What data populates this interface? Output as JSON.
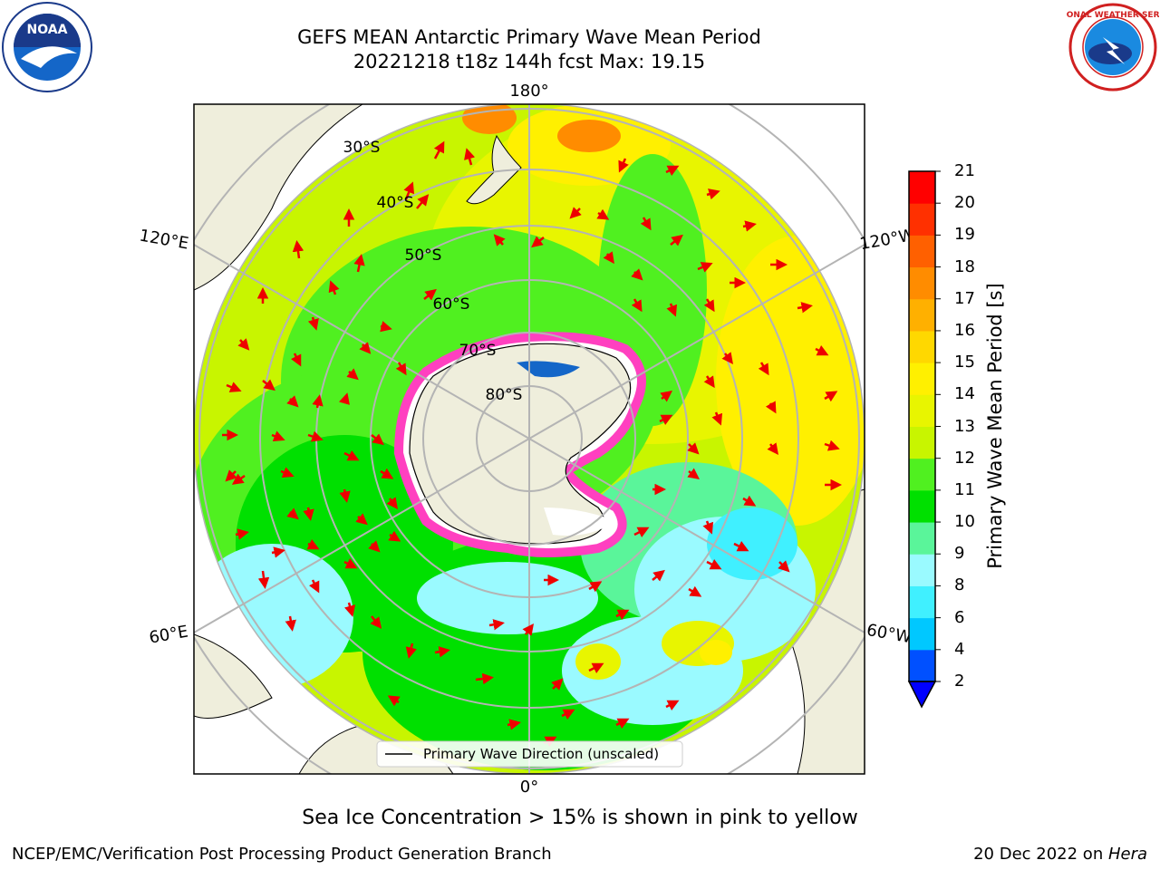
{
  "header": {
    "title_line1": "GEFS MEAN Antarctic Primary Wave Mean Period",
    "title_line2": "20221218 t18z 144h fcst   Max: 19.15"
  },
  "logos": {
    "left": "noaa-logo",
    "left_text": "NOAA",
    "right": "nws-logo",
    "right_text": "NATIONAL WEATHER SERVICE"
  },
  "map": {
    "projection": "south-polar-stereographic",
    "lon_labels": {
      "top": "180°",
      "bottom": "0°",
      "upper_left": "120°E",
      "upper_right": "120°W",
      "lower_left": "60°E",
      "lower_right": "60°W"
    },
    "lat_labels": [
      "30°S",
      "40°S",
      "50°S",
      "60°S",
      "70°S",
      "80°S"
    ],
    "legend_label": "Primary Wave Direction (unscaled)"
  },
  "colorbar": {
    "title": "Primary Wave Mean Period [s]",
    "ticks": [
      "2",
      "4",
      "6",
      "8",
      "9",
      "10",
      "11",
      "12",
      "13",
      "14",
      "15",
      "16",
      "17",
      "18",
      "19",
      "20",
      "21"
    ],
    "colors": [
      "#0050ff",
      "#00c8ff",
      "#40f0ff",
      "#9afaff",
      "#5af59a",
      "#00e000",
      "#50f020",
      "#c8f500",
      "#e8f500",
      "#fff000",
      "#ffd800",
      "#ffb000",
      "#ff8c00",
      "#ff6000",
      "#ff3000",
      "#ff0000"
    ],
    "extend_color": "#0000ff"
  },
  "subtitle": "Sea Ice Concentration > 15% is shown in pink to yellow",
  "footer": {
    "left": "NCEP/EMC/Verification Post Processing Product Generation Branch",
    "right_date": "20 Dec 2022 on ",
    "right_machine": "Hera"
  }
}
